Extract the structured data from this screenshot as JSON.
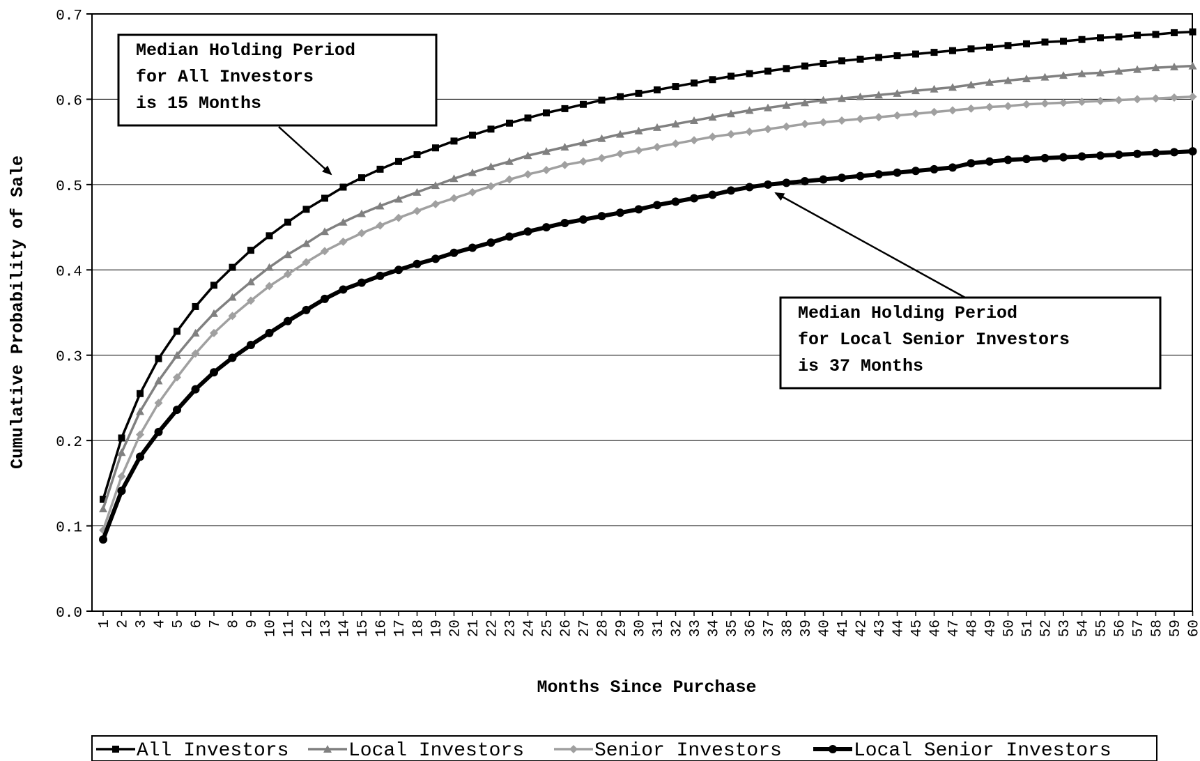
{
  "chart_data": {
    "type": "line",
    "title": "",
    "xlabel": "Months Since Purchase",
    "ylabel": "Cumulative Probability of Sale",
    "x": [
      1,
      2,
      3,
      4,
      5,
      6,
      7,
      8,
      9,
      10,
      11,
      12,
      13,
      14,
      15,
      16,
      17,
      18,
      19,
      20,
      21,
      22,
      23,
      24,
      25,
      26,
      27,
      28,
      29,
      30,
      31,
      32,
      33,
      34,
      35,
      36,
      37,
      38,
      39,
      40,
      41,
      42,
      43,
      44,
      45,
      46,
      47,
      48,
      49,
      50,
      51,
      52,
      53,
      54,
      55,
      56,
      57,
      58,
      59,
      60
    ],
    "x_tick_labels": [
      "1",
      "2",
      "3",
      "4",
      "5",
      "6",
      "7",
      "8",
      "9",
      "10",
      "11",
      "12",
      "13",
      "14",
      "15",
      "16",
      "17",
      "18",
      "19",
      "20",
      "21",
      "22",
      "23",
      "24",
      "25",
      "26",
      "27",
      "28",
      "29",
      "30",
      "31",
      "32",
      "33",
      "34",
      "35",
      "36",
      "37",
      "38",
      "39",
      "40",
      "41",
      "42",
      "43",
      "44",
      "45",
      "46",
      "47",
      "48",
      "49",
      "50",
      "51",
      "52",
      "53",
      "54",
      "55",
      "56",
      "57",
      "58",
      "59",
      "60"
    ],
    "ylim": [
      0,
      0.7
    ],
    "y_ticks": [
      0,
      0.1,
      0.2,
      0.3,
      0.4,
      0.5,
      0.6,
      0.7
    ],
    "y_tick_labels": [
      "0.0",
      "0.1",
      "0.2",
      "0.3",
      "0.4",
      "0.5",
      "0.6",
      "0.7"
    ],
    "grid": "horizontal",
    "legend_position": "bottom",
    "series": [
      {
        "name": "All Investors",
        "marker": "square",
        "color": "#000000",
        "width": 3.5,
        "values": [
          0.131,
          0.203,
          0.255,
          0.296,
          0.328,
          0.357,
          0.382,
          0.403,
          0.423,
          0.44,
          0.456,
          0.471,
          0.484,
          0.497,
          0.508,
          0.518,
          0.527,
          0.535,
          0.543,
          0.551,
          0.558,
          0.565,
          0.572,
          0.578,
          0.584,
          0.589,
          0.594,
          0.599,
          0.603,
          0.607,
          0.611,
          0.615,
          0.619,
          0.623,
          0.627,
          0.63,
          0.633,
          0.636,
          0.639,
          0.642,
          0.645,
          0.647,
          0.649,
          0.651,
          0.653,
          0.655,
          0.657,
          0.659,
          0.661,
          0.663,
          0.665,
          0.667,
          0.668,
          0.67,
          0.672,
          0.673,
          0.675,
          0.676,
          0.678,
          0.679
        ]
      },
      {
        "name": "Local Investors",
        "marker": "triangle",
        "color": "#808080",
        "width": 3.5,
        "values": [
          0.12,
          0.186,
          0.234,
          0.27,
          0.3,
          0.326,
          0.349,
          0.368,
          0.386,
          0.403,
          0.418,
          0.431,
          0.445,
          0.456,
          0.466,
          0.475,
          0.483,
          0.491,
          0.499,
          0.507,
          0.514,
          0.521,
          0.527,
          0.534,
          0.539,
          0.544,
          0.549,
          0.554,
          0.559,
          0.563,
          0.567,
          0.571,
          0.575,
          0.579,
          0.583,
          0.587,
          0.59,
          0.593,
          0.596,
          0.599,
          0.601,
          0.603,
          0.605,
          0.607,
          0.61,
          0.612,
          0.614,
          0.617,
          0.62,
          0.622,
          0.624,
          0.626,
          0.628,
          0.63,
          0.631,
          0.633,
          0.635,
          0.637,
          0.638,
          0.639
        ]
      },
      {
        "name": "Senior Investors",
        "marker": "diamond",
        "color": "#a0a0a0",
        "width": 3.5,
        "values": [
          0.095,
          0.158,
          0.207,
          0.244,
          0.274,
          0.302,
          0.326,
          0.346,
          0.364,
          0.381,
          0.395,
          0.409,
          0.422,
          0.433,
          0.443,
          0.452,
          0.461,
          0.469,
          0.477,
          0.484,
          0.491,
          0.498,
          0.506,
          0.512,
          0.517,
          0.523,
          0.527,
          0.531,
          0.536,
          0.54,
          0.544,
          0.548,
          0.552,
          0.556,
          0.559,
          0.562,
          0.565,
          0.568,
          0.571,
          0.573,
          0.575,
          0.577,
          0.579,
          0.581,
          0.583,
          0.585,
          0.587,
          0.589,
          0.591,
          0.592,
          0.594,
          0.595,
          0.596,
          0.597,
          0.598,
          0.599,
          0.6,
          0.601,
          0.602,
          0.603
        ]
      },
      {
        "name": "Local Senior Investors",
        "marker": "circle",
        "color": "#000000",
        "width": 6,
        "values": [
          0.084,
          0.141,
          0.181,
          0.21,
          0.236,
          0.26,
          0.28,
          0.297,
          0.312,
          0.326,
          0.34,
          0.353,
          0.366,
          0.377,
          0.385,
          0.393,
          0.4,
          0.407,
          0.413,
          0.42,
          0.426,
          0.432,
          0.439,
          0.445,
          0.45,
          0.455,
          0.459,
          0.463,
          0.467,
          0.471,
          0.476,
          0.48,
          0.484,
          0.488,
          0.493,
          0.497,
          0.5,
          0.502,
          0.504,
          0.506,
          0.508,
          0.51,
          0.512,
          0.514,
          0.516,
          0.518,
          0.52,
          0.525,
          0.527,
          0.529,
          0.53,
          0.531,
          0.532,
          0.533,
          0.534,
          0.535,
          0.536,
          0.537,
          0.538,
          0.539
        ]
      }
    ],
    "annotations": [
      {
        "lines": [
          "Median Holding Period",
          "for All Investors",
          "is 15 Months"
        ],
        "points_to": {
          "x": 14.5,
          "y": 0.5
        }
      },
      {
        "lines": [
          "Median Holding Period",
          "for Local Senior Investors",
          "is 37 Months"
        ],
        "points_to": {
          "x": 37,
          "y": 0.5
        }
      }
    ]
  }
}
